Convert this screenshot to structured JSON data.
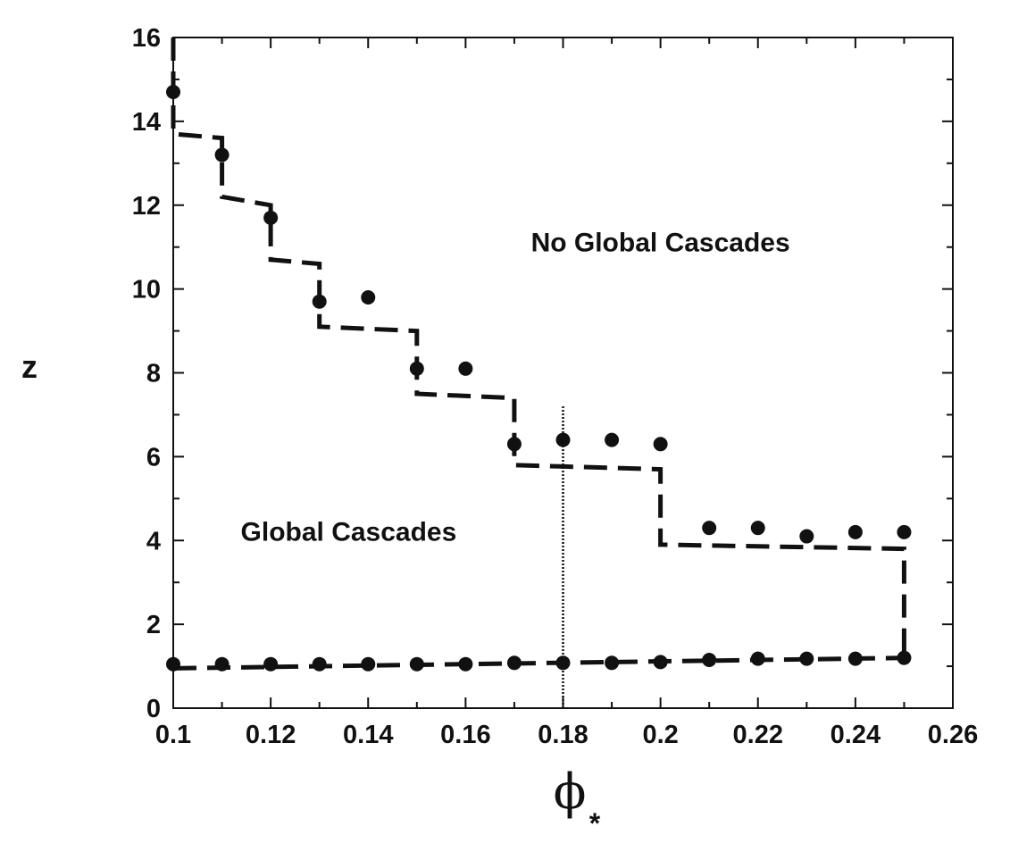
{
  "chart_data": {
    "type": "scatter",
    "title": "",
    "xlabel": "ϕ",
    "xlabel_subscript": "*",
    "ylabel": "z",
    "xlim": [
      0.1,
      0.26
    ],
    "ylim": [
      0,
      16
    ],
    "x_ticks": [
      0.1,
      0.12,
      0.14,
      0.16,
      0.18,
      0.2,
      0.22,
      0.24,
      0.26
    ],
    "x_tick_labels": [
      "0.1",
      "0.12",
      "0.14",
      "0.16",
      "0.18",
      "0.2",
      "0.22",
      "0.24",
      "0.26"
    ],
    "y_ticks": [
      0,
      2,
      4,
      6,
      8,
      10,
      12,
      14,
      16
    ],
    "y_tick_labels": [
      "0",
      "2",
      "4",
      "6",
      "8",
      "10",
      "12",
      "14",
      "16"
    ],
    "grid": false,
    "annotations": [
      {
        "text": "No Global Cascades",
        "x": 0.2,
        "y": 10.9
      },
      {
        "text": "Global Cascades",
        "x": 0.136,
        "y": 4.0
      }
    ],
    "vertical_reference_line": {
      "x": 0.18,
      "y_top": 7.2,
      "style": "dotted"
    },
    "series": [
      {
        "style": "markers",
        "x": [
          0.1,
          0.11,
          0.12,
          0.13,
          0.14,
          0.15,
          0.16,
          0.17,
          0.18,
          0.19,
          0.2,
          0.21,
          0.22,
          0.23,
          0.24,
          0.25
        ],
        "y": [
          14.7,
          13.2,
          11.7,
          9.7,
          9.8,
          8.1,
          8.1,
          6.3,
          6.4,
          6.4,
          6.3,
          4.3,
          4.3,
          4.1,
          4.2,
          4.2
        ]
      },
      {
        "style": "markers",
        "x": [
          0.1,
          0.11,
          0.12,
          0.13,
          0.14,
          0.15,
          0.16,
          0.17,
          0.18,
          0.19,
          0.2,
          0.21,
          0.22,
          0.23,
          0.24,
          0.25
        ],
        "y": [
          1.05,
          1.05,
          1.05,
          1.05,
          1.05,
          1.05,
          1.05,
          1.08,
          1.08,
          1.08,
          1.1,
          1.15,
          1.18,
          1.18,
          1.18,
          1.2
        ]
      },
      {
        "style": "dashed-step",
        "points": [
          [
            0.1,
            16.0
          ],
          [
            0.1,
            13.7
          ],
          [
            0.11,
            13.6
          ],
          [
            0.11,
            12.2
          ],
          [
            0.12,
            12.0
          ],
          [
            0.12,
            10.7
          ],
          [
            0.13,
            10.6
          ],
          [
            0.13,
            9.1
          ],
          [
            0.15,
            9.0
          ],
          [
            0.15,
            7.5
          ],
          [
            0.17,
            7.4
          ],
          [
            0.17,
            5.8
          ],
          [
            0.2,
            5.7
          ],
          [
            0.2,
            3.9
          ],
          [
            0.25,
            3.8
          ],
          [
            0.25,
            1.2
          ]
        ]
      },
      {
        "style": "dashed-line",
        "points": [
          [
            0.1,
            0.95
          ],
          [
            0.25,
            1.2
          ]
        ]
      }
    ]
  }
}
